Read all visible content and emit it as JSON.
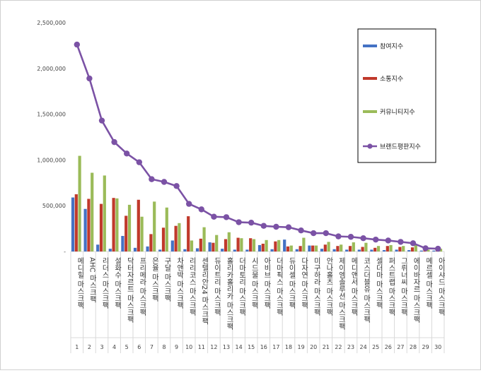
{
  "chart_data": {
    "type": "bar",
    "categories": [
      "메디힐 마스크팩",
      "AHC 마스크팩",
      "리더스 마스크팩",
      "설화수 마스크팩",
      "닥터자르트 마스크팩",
      "프리메라 마스크팩",
      "은율 마스크팩",
      "구달 마스크팩",
      "차앤박 마스크팩",
      "리리코스 마스크팩",
      "센텔리안24 마스크팩",
      "듀이트리 마스크팩",
      "홀리카홀리카 마스크팩",
      "더마토리 마스크팩",
      "시드물 마스크팩",
      "아비브 마스크팩",
      "더마픽스 마스크팩",
      "듀이셀 마스크팩",
      "다자연 마스크팩",
      "미구하라 마스크팩",
      "안나홀츠 마스크팩",
      "제이엠솔루션 마스크팩",
      "메디앤서 마스크팩",
      "코스더블유 마스크팩",
      "셀더마 마스크팩",
      "퍼스트랩 마스크팩",
      "그뤼너씨 마스크팩",
      "에이바자르 마스크팩",
      "메르셀 마스크팩",
      "아이샤드 마스크팩"
    ],
    "bottom_labels": [
      "1",
      "2",
      "3",
      "4",
      "5",
      "6",
      "7",
      "8",
      "9",
      "10",
      "11",
      "12",
      "13",
      "14",
      "15",
      "16",
      "17",
      "18",
      "19",
      "20",
      "21",
      "22",
      "23",
      "24",
      "25",
      "26",
      "27",
      "28",
      "29",
      "30"
    ],
    "series": [
      {
        "name": "참여지수",
        "kind": "bar",
        "color": "#4472c4",
        "values": [
          590000,
          465000,
          75000,
          30000,
          170000,
          40000,
          55000,
          20000,
          120000,
          25000,
          35000,
          100000,
          30000,
          20000,
          20000,
          70000,
          25000,
          130000,
          25000,
          65000,
          30000,
          25000,
          20000,
          20000,
          20000,
          15000,
          20000,
          15000,
          10000,
          10000
        ]
      },
      {
        "name": "소통지수",
        "kind": "bar",
        "color": "#c0392b",
        "values": [
          625000,
          575000,
          520000,
          585000,
          390000,
          565000,
          190000,
          260000,
          280000,
          385000,
          140000,
          95000,
          135000,
          150000,
          145000,
          85000,
          110000,
          55000,
          60000,
          65000,
          75000,
          60000,
          60000,
          50000,
          40000,
          60000,
          50000,
          45000,
          25000,
          20000
        ]
      },
      {
        "name": "커뮤니티지수",
        "kind": "bar",
        "color": "#9bbb59",
        "values": [
          1045000,
          860000,
          830000,
          580000,
          510000,
          380000,
          545000,
          480000,
          310000,
          120000,
          265000,
          180000,
          210000,
          145000,
          135000,
          125000,
          125000,
          65000,
          150000,
          65000,
          105000,
          75000,
          100000,
          95000,
          60000,
          70000,
          60000,
          75000,
          20000,
          30000
        ]
      },
      {
        "name": "브랜드평판지수",
        "kind": "line",
        "color": "#7b52a5",
        "values": [
          2260000,
          1890000,
          1430000,
          1195000,
          1070000,
          975000,
          790000,
          760000,
          715000,
          520000,
          460000,
          380000,
          375000,
          320000,
          315000,
          280000,
          270000,
          265000,
          230000,
          200000,
          200000,
          165000,
          160000,
          145000,
          130000,
          120000,
          105000,
          90000,
          35000,
          30000
        ]
      }
    ],
    "ylim": [
      0,
      2500000
    ],
    "yticks": [
      0,
      500000,
      1000000,
      1500000,
      2000000,
      2500000
    ],
    "ytick_labels": [
      "-",
      "500,000",
      "1,000,000",
      "1,500,000",
      "2,000,000",
      "2,500,000"
    ],
    "title": "",
    "xlabel": "",
    "ylabel": "",
    "grid": false,
    "legend_position": "top-right"
  }
}
